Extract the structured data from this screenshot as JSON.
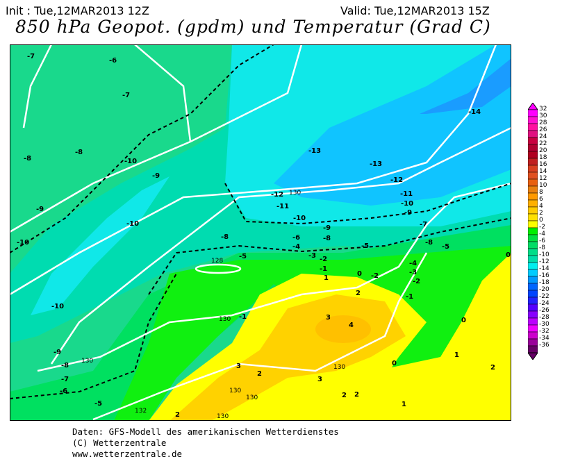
{
  "header": {
    "init": "Init : Tue,12MAR2013 12Z",
    "valid": "Valid: Tue,12MAR2013 15Z",
    "title": "850 hPa Geopot. (gpdm) und Temperatur (Grad C)"
  },
  "legend": {
    "unit": "Grad C",
    "ticks": [
      "32",
      "30",
      "28",
      "26",
      "24",
      "22",
      "20",
      "18",
      "16",
      "14",
      "12",
      "10",
      "8",
      "6",
      "4",
      "2",
      "0",
      "-2",
      "-4",
      "-6",
      "-8",
      "-10",
      "-12",
      "-14",
      "-16",
      "-18",
      "-20",
      "-22",
      "-24",
      "-26",
      "-28",
      "-30",
      "-32",
      "-34",
      "-36"
    ],
    "colors": [
      "#ff00ff",
      "#ff10d0",
      "#ff10a0",
      "#e01080",
      "#c80040",
      "#b00030",
      "#b00020",
      "#c02020",
      "#d84020",
      "#e05020",
      "#e86010",
      "#e88010",
      "#ff9900",
      "#ffb000",
      "#ffcc00",
      "#ffe000",
      "#ffff00",
      "#00ee00",
      "#00e040",
      "#00dd66",
      "#00dd88",
      "#00ddaa",
      "#00eeee",
      "#00ccff",
      "#0099ff",
      "#0066ff",
      "#0044ff",
      "#2222ff",
      "#5500ff",
      "#8800ff",
      "#bb00ff",
      "#ee00ff",
      "#cc00cc",
      "#990099",
      "#660066"
    ]
  },
  "map": {
    "temperature_labels": [
      "-7",
      "-6",
      "-7",
      "-8",
      "-8",
      "-10",
      "-9",
      "-9",
      "-10",
      "-10",
      "-10",
      "-9",
      "-8",
      "-7",
      "-6",
      "-5",
      "-13",
      "-13",
      "-14",
      "-12",
      "-12",
      "-11",
      "-11",
      "-10",
      "-10",
      "-9",
      "-9",
      "-8",
      "-8",
      "-7",
      "-8",
      "-5",
      "-5",
      "-6",
      "-4",
      "-3",
      "-2",
      "-1",
      "-5",
      "0",
      "-2",
      "-4",
      "-3",
      "-2",
      "-1",
      "0",
      "-1",
      "1",
      "2",
      "3",
      "4",
      "3",
      "2",
      "3",
      "2",
      "2",
      "1",
      "1",
      "2",
      "0",
      "0",
      "2"
    ],
    "geopotential_labels": [
      "130",
      "128",
      "130",
      "130",
      "130",
      "130",
      "130",
      "130",
      "132",
      "130"
    ]
  },
  "footer": {
    "line1": "Daten: GFS-Modell des amerikanischen Wetterdienstes",
    "line2": "(C) Wetterzentrale",
    "line3": "www.wetterzentrale.de"
  }
}
